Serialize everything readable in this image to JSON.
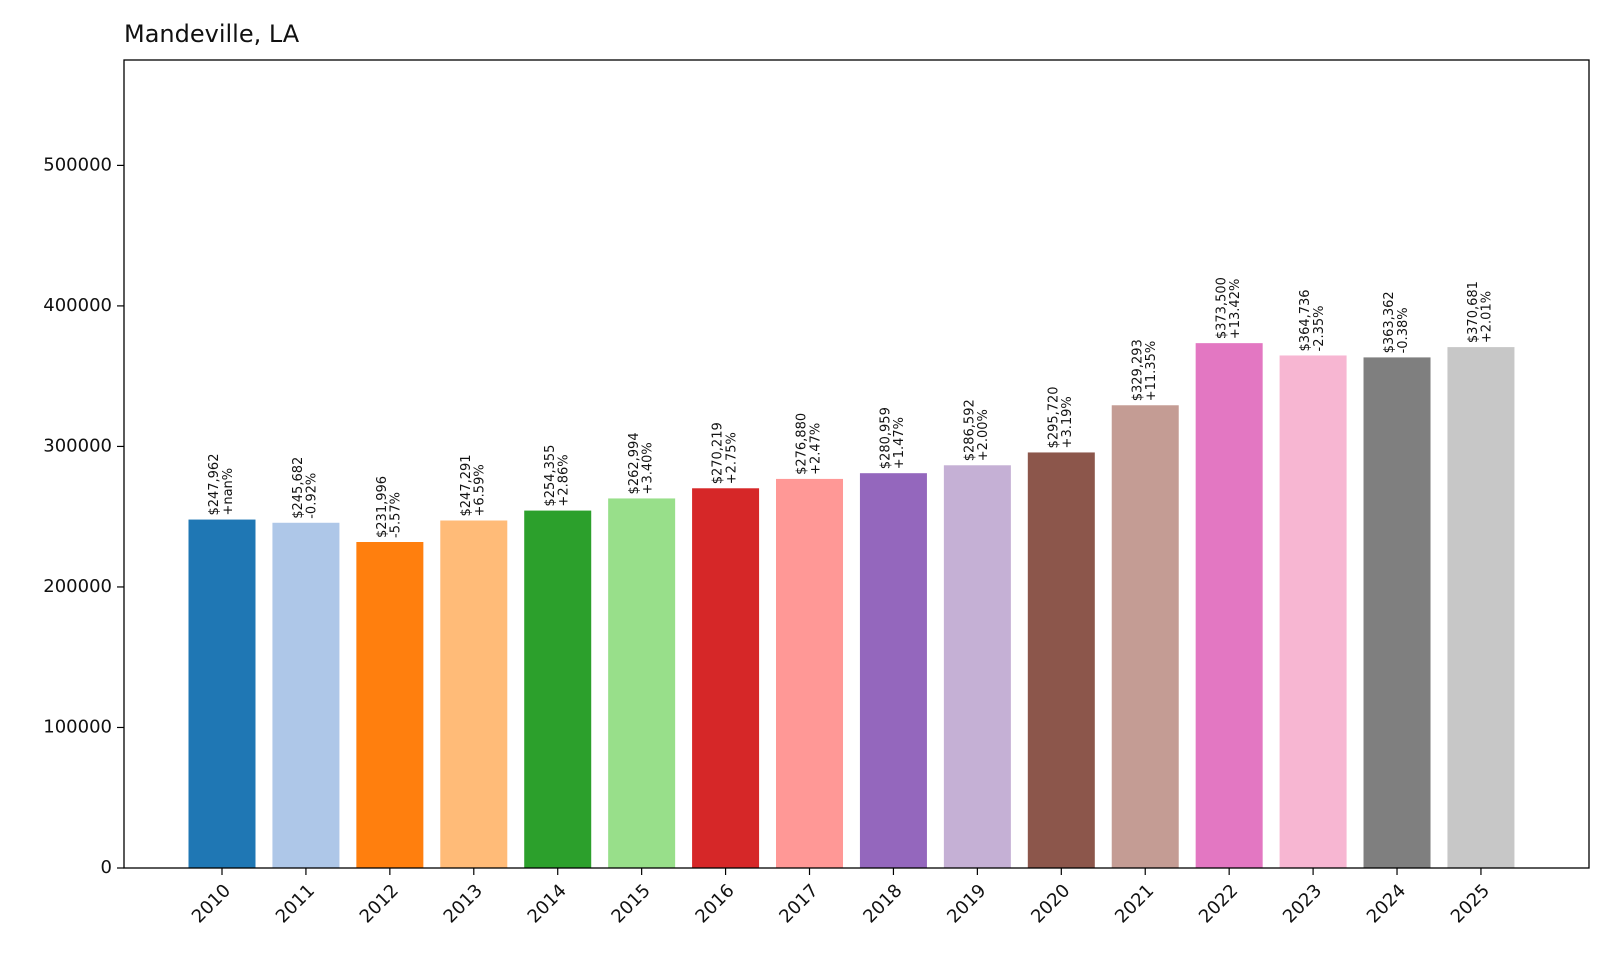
{
  "chart_data": {
    "type": "bar",
    "title": "Mandeville, LA",
    "xlabel": "",
    "ylabel": "",
    "categories": [
      "2010",
      "2011",
      "2012",
      "2013",
      "2014",
      "2015",
      "2016",
      "2017",
      "2018",
      "2019",
      "2020",
      "2021",
      "2022",
      "2023",
      "2024",
      "2025"
    ],
    "values": [
      247962,
      245682,
      231996,
      247291,
      254355,
      262994,
      270219,
      276880,
      280959,
      286592,
      295720,
      329293,
      373500,
      364736,
      363362,
      370681
    ],
    "value_labels": [
      "$247,962",
      "$245,682",
      "$231,996",
      "$247,291",
      "$254,355",
      "$262,994",
      "$270,219",
      "$276,880",
      "$280,959",
      "$286,592",
      "$295,720",
      "$329,293",
      "$373,500",
      "$364,736",
      "$363,362",
      "$370,681"
    ],
    "change_labels": [
      "+nan%",
      "-0.92%",
      "-5.57%",
      "+6.59%",
      "+2.86%",
      "+3.40%",
      "+2.75%",
      "+2.47%",
      "+1.47%",
      "+2.00%",
      "+3.19%",
      "+11.35%",
      "+13.42%",
      "-2.35%",
      "-0.38%",
      "+2.01%"
    ],
    "colors": [
      "#1f77b4",
      "#aec7e8",
      "#ff7f0e",
      "#ffbb78",
      "#2ca02c",
      "#98df8a",
      "#d62728",
      "#ff9896",
      "#9467bd",
      "#c5b0d5",
      "#8c564b",
      "#c49c94",
      "#e377c2",
      "#f7b6d2",
      "#7f7f7f",
      "#c7c7c7"
    ],
    "ylim": [
      0,
      575000
    ],
    "yticks": [
      0,
      100000,
      200000,
      300000,
      400000,
      500000
    ],
    "ytick_labels": [
      "0",
      "100000",
      "200000",
      "300000",
      "400000",
      "500000"
    ],
    "grid": false,
    "legend": "none"
  }
}
